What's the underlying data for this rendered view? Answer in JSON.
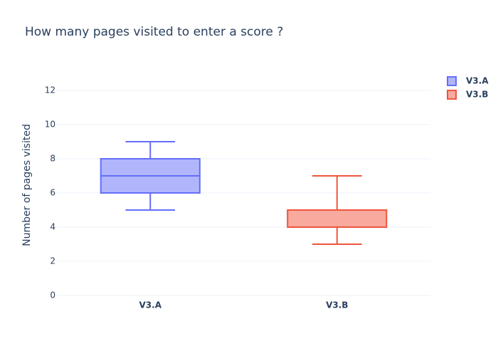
{
  "chart_data": {
    "type": "box",
    "title": "How many pages visited to enter a score ?",
    "y_label": "Number of pages visited",
    "categories": [
      "V3.A",
      "V3.B"
    ],
    "series": [
      {
        "name": "V3.A",
        "color": "#636efa",
        "lowerfence": 5,
        "q1": 6,
        "median": 7,
        "q3": 8,
        "upperfence": 9
      },
      {
        "name": "V3.B",
        "color": "#ef553b",
        "lowerfence": 3,
        "q1": 4,
        "median": 4,
        "q3": 5,
        "upperfence": 7
      }
    ],
    "ylim": [
      0,
      13
    ],
    "yticks": [
      0,
      2,
      4,
      6,
      8,
      10,
      12
    ],
    "grid": true,
    "legend": "top-right"
  }
}
